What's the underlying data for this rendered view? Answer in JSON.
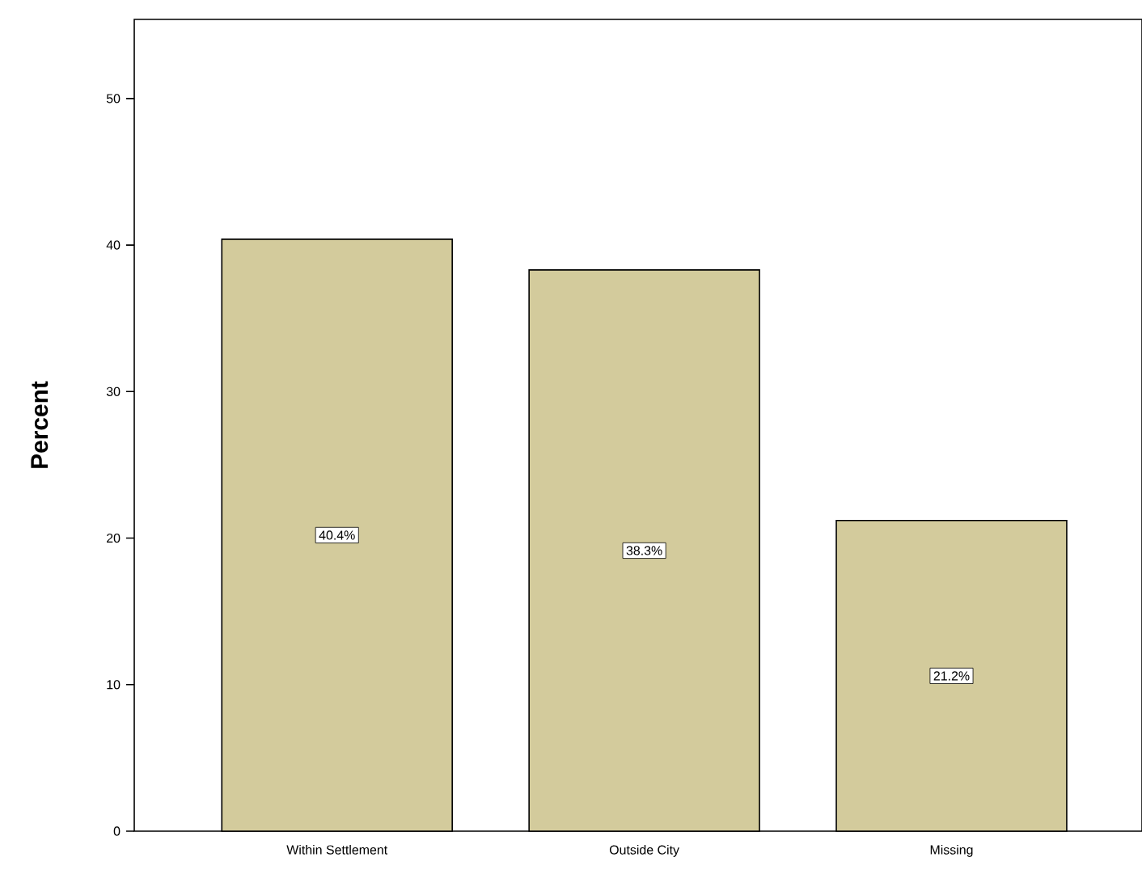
{
  "chart_data": {
    "type": "bar",
    "ylabel": "Percent",
    "categories": [
      "Within Settlement",
      "Outside City",
      "Missing"
    ],
    "values": [
      40.4,
      38.3,
      21.2
    ],
    "value_labels": [
      "40.4%",
      "38.3%",
      "21.2%"
    ],
    "color": "#d3cb9c",
    "ylim": [
      0,
      55.4
    ],
    "yticks": [
      0,
      10,
      20,
      30,
      40,
      50
    ]
  }
}
